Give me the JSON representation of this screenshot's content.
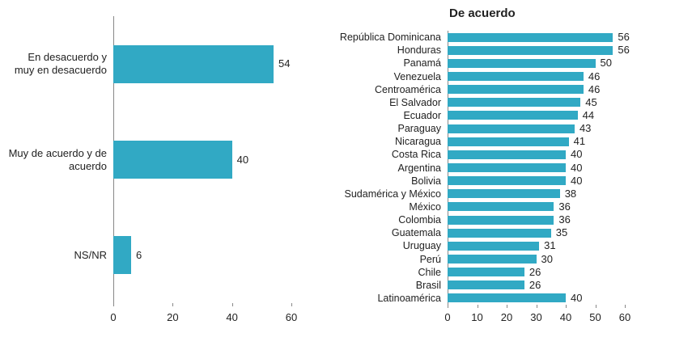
{
  "chart_data": [
    {
      "type": "bar",
      "orientation": "horizontal",
      "color": "#31a9c4",
      "categories": [
        "En desacuerdo y muy en desacuerdo",
        "Muy de acuerdo y de acuerdo",
        "NS/NR"
      ],
      "values": [
        54,
        40,
        6
      ],
      "xlim": [
        0,
        60
      ],
      "xticks": [
        0,
        20,
        40,
        60
      ]
    },
    {
      "type": "bar",
      "orientation": "horizontal",
      "color": "#31a9c4",
      "title": "De acuerdo",
      "categories": [
        "República Dominicana",
        "Honduras",
        "Panamá",
        "Venezuela",
        "Centroamérica",
        "El Salvador",
        "Ecuador",
        "Paraguay",
        "Nicaragua",
        "Costa Rica",
        "Argentina",
        "Bolivia",
        "Sudamérica y México",
        "México",
        "Colombia",
        "Guatemala",
        "Uruguay",
        "Perú",
        "Chile",
        "Brasil",
        "Latinoamérica"
      ],
      "values": [
        56,
        56,
        50,
        46,
        46,
        45,
        44,
        43,
        41,
        40,
        40,
        40,
        38,
        36,
        36,
        35,
        31,
        30,
        26,
        26,
        40
      ],
      "xlim": [
        0,
        60
      ],
      "xticks": [
        0,
        10,
        20,
        30,
        40,
        50,
        60
      ]
    }
  ]
}
